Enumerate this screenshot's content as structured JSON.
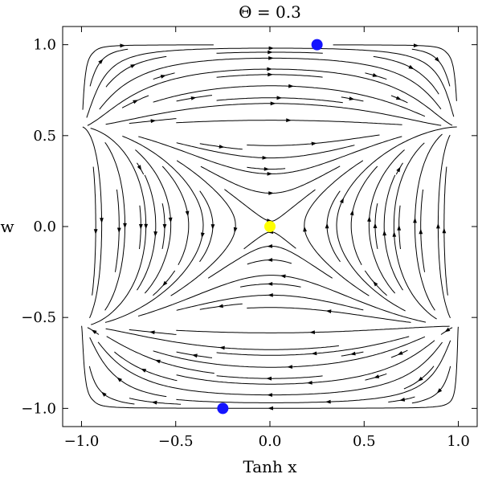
{
  "chart_data": {
    "type": "scatter",
    "title": "Θ = 0.3",
    "xlabel": "Tanh x",
    "ylabel": "w",
    "xlim": [
      -1.1,
      1.1
    ],
    "ylim": [
      -1.1,
      1.1
    ],
    "x_ticks": [
      -1.0,
      -0.5,
      0.0,
      0.5,
      1.0
    ],
    "x_tick_labels": [
      "−1.0",
      "−0.5",
      "0.0",
      "0.5",
      "1.0"
    ],
    "y_ticks": [
      -1.0,
      -0.5,
      0.0,
      0.5,
      1.0
    ],
    "y_tick_labels": [
      "−1.0",
      "−0.5",
      "0.0",
      "0.5",
      "1.0"
    ],
    "grid": false,
    "frame": true,
    "stream_density": 16,
    "series": [
      {
        "values": [
          {
            "x": 0.25,
            "y": 1.0
          },
          {
            "x": -0.25,
            "y": -1.0
          }
        ],
        "color": "#1414ff"
      },
      {
        "values": [
          {
            "x": 0.0,
            "y": 0.0
          }
        ],
        "color": "#ffff00"
      }
    ]
  }
}
